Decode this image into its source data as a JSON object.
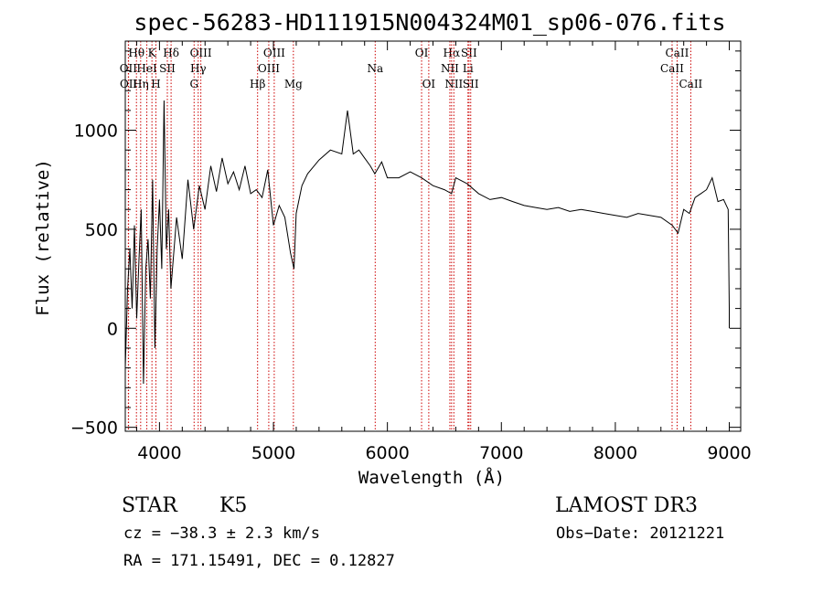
{
  "chart_data": {
    "type": "line",
    "title": "spec-56283-HD111915N004324M01_sp06-076.fits",
    "xlabel": "Wavelength (Å)",
    "ylabel": "Flux (relative)",
    "xlim": [
      3700,
      9100
    ],
    "ylim": [
      -520,
      1450
    ],
    "x_ticks": [
      4000,
      5000,
      6000,
      7000,
      8000,
      9000
    ],
    "y_ticks": [
      -500,
      0,
      500,
      1000
    ],
    "grid": false,
    "series": [
      {
        "x": [
          3700,
          3720,
          3740,
          3760,
          3780,
          3800,
          3820,
          3840,
          3860,
          3880,
          3900,
          3920,
          3940,
          3960,
          3980,
          4000,
          4020,
          4040,
          4060,
          4080,
          4100,
          4150,
          4200,
          4250,
          4300,
          4350,
          4400,
          4450,
          4500,
          4550,
          4600,
          4650,
          4700,
          4750,
          4800,
          4850,
          4900,
          4950,
          5000,
          5050,
          5100,
          5150,
          5180,
          5200,
          5250,
          5300,
          5400,
          5500,
          5600,
          5650,
          5700,
          5750,
          5800,
          5850,
          5890,
          5950,
          6000,
          6100,
          6200,
          6300,
          6400,
          6500,
          6563,
          6600,
          6700,
          6800,
          6900,
          7000,
          7100,
          7200,
          7300,
          7400,
          7500,
          7600,
          7700,
          7800,
          7900,
          8000,
          8100,
          8200,
          8300,
          8400,
          8500,
          8550,
          8600,
          8650,
          8700,
          8750,
          8800,
          8850,
          8900,
          8950,
          8990,
          9000,
          9000
        ],
        "y": [
          -200,
          200,
          400,
          100,
          520,
          50,
          350,
          600,
          -280,
          300,
          450,
          150,
          750,
          -100,
          400,
          650,
          300,
          1150,
          400,
          600,
          200,
          560,
          350,
          750,
          500,
          720,
          600,
          820,
          690,
          860,
          730,
          790,
          700,
          820,
          680,
          700,
          660,
          800,
          520,
          620,
          560,
          380,
          300,
          580,
          720,
          780,
          850,
          900,
          880,
          1100,
          880,
          900,
          860,
          820,
          780,
          840,
          760,
          760,
          790,
          760,
          720,
          700,
          680,
          760,
          730,
          680,
          650,
          660,
          640,
          620,
          610,
          600,
          610,
          590,
          600,
          590,
          580,
          570,
          560,
          580,
          570,
          560,
          520,
          480,
          600,
          580,
          660,
          680,
          700,
          760,
          640,
          650,
          600,
          100,
          0
        ]
      }
    ],
    "spectral_lines": [
      {
        "label": "Hθ",
        "x": 3798,
        "row": 1
      },
      {
        "label": "OII",
        "x": 3727,
        "row": 2
      },
      {
        "label": "OII",
        "x": 3729,
        "row": 3
      },
      {
        "label": "K",
        "x": 3934,
        "row": 1
      },
      {
        "label": "HeI",
        "x": 3889,
        "row": 2
      },
      {
        "label": "Hη",
        "x": 3835,
        "row": 3
      },
      {
        "label": "H",
        "x": 3969,
        "row": 3
      },
      {
        "label": "Hδ",
        "x": 4102,
        "row": 1
      },
      {
        "label": "SII",
        "x": 4069,
        "row": 2
      },
      {
        "label": "OIII",
        "x": 4363,
        "row": 1
      },
      {
        "label": "Hγ",
        "x": 4340,
        "row": 2
      },
      {
        "label": "G",
        "x": 4304,
        "row": 3
      },
      {
        "label": "Hβ",
        "x": 4861,
        "row": 3
      },
      {
        "label": "OIII",
        "x": 5007,
        "row": 1
      },
      {
        "label": "OIII",
        "x": 4959,
        "row": 2
      },
      {
        "label": "Mg",
        "x": 5175,
        "row": 3
      },
      {
        "label": "Na",
        "x": 5893,
        "row": 2
      },
      {
        "label": "OI",
        "x": 6300,
        "row": 1
      },
      {
        "label": "OI",
        "x": 6363,
        "row": 3
      },
      {
        "label": "Hα",
        "x": 6563,
        "row": 1
      },
      {
        "label": "NII",
        "x": 6548,
        "row": 2
      },
      {
        "label": "NII",
        "x": 6583,
        "row": 3
      },
      {
        "label": "SII",
        "x": 6716,
        "row": 1
      },
      {
        "label": "Li",
        "x": 6707,
        "row": 2
      },
      {
        "label": "SII",
        "x": 6731,
        "row": 3
      },
      {
        "label": "CaII",
        "x": 8542,
        "row": 1
      },
      {
        "label": "CaII",
        "x": 8498,
        "row": 2
      },
      {
        "label": "CaII",
        "x": 8662,
        "row": 3
      }
    ]
  },
  "footer": {
    "object_class": "STAR",
    "subclass": "K5",
    "survey": "LAMOST DR3",
    "cz": "cz = −38.3 ± 2.3 km/s",
    "obs_date": "Obs−Date: 20121221",
    "coords": "RA = 171.15491, DEC =   0.12827"
  },
  "colors": {
    "line": "#000000",
    "marker": "#cc0000"
  }
}
